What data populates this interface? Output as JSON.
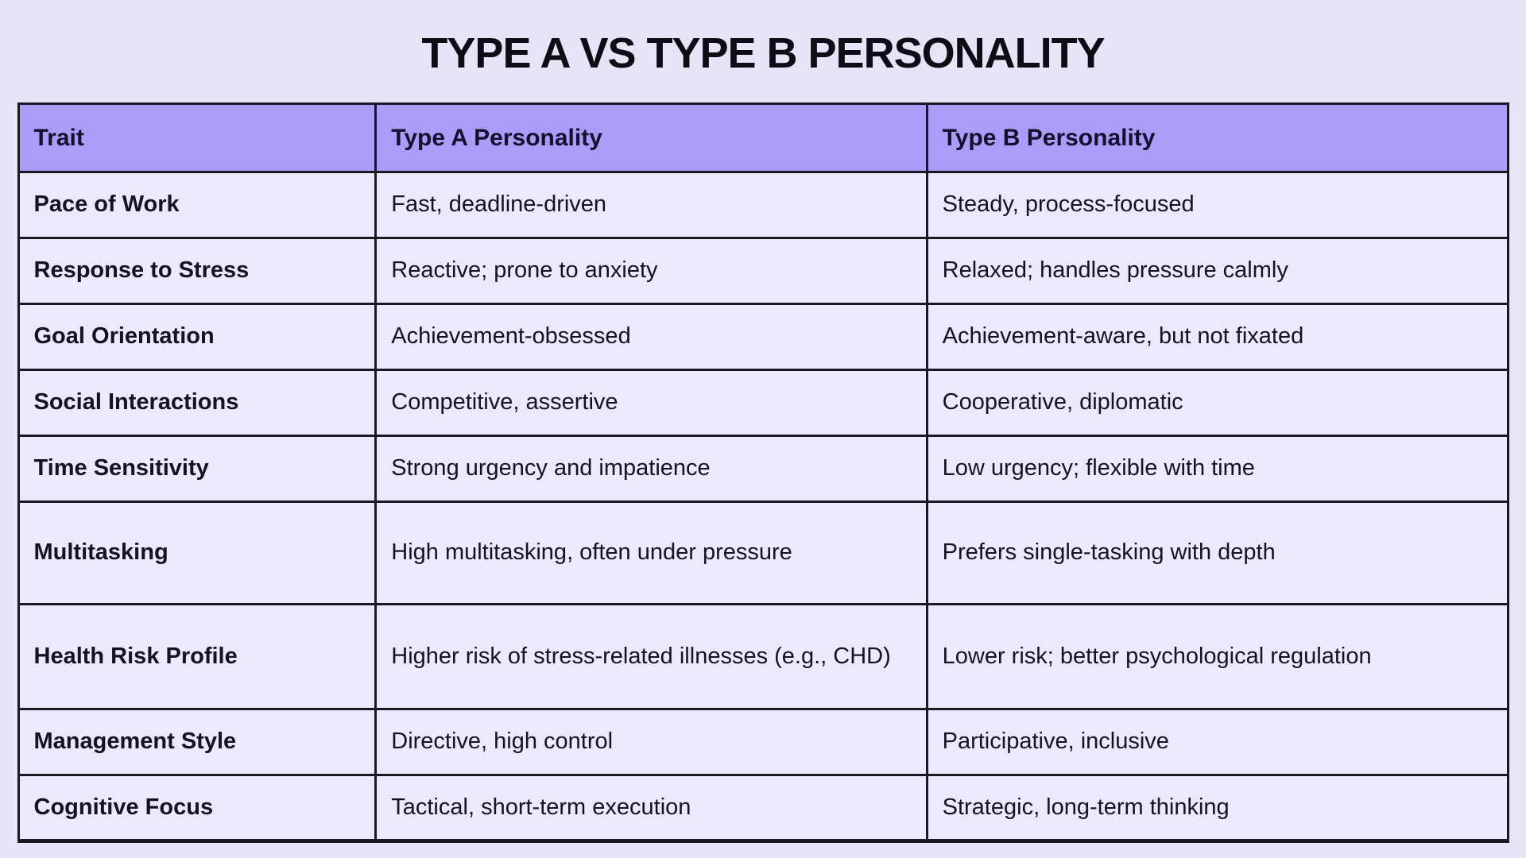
{
  "title": "TYPE A VS TYPE B PERSONALITY",
  "colors": {
    "page_bg": "#E7E4F8",
    "header_bg": "#AB9CFA",
    "cell_bg": "#EBE9FB",
    "border": "#1A1823",
    "text": "#161320"
  },
  "table": {
    "columns": [
      "Trait",
      "Type A Personality",
      "Type B Personality"
    ],
    "rows": [
      {
        "trait": "Pace of Work",
        "type_a": "Fast, deadline-driven",
        "type_b": "Steady, process-focused"
      },
      {
        "trait": "Response to Stress",
        "type_a": "Reactive; prone to anxiety",
        "type_b": "Relaxed; handles pressure calmly"
      },
      {
        "trait": "Goal Orientation",
        "type_a": "Achievement-obsessed",
        "type_b": "Achievement-aware, but not fixated"
      },
      {
        "trait": "Social Interactions",
        "type_a": "Competitive, assertive",
        "type_b": "Cooperative, diplomatic"
      },
      {
        "trait": "Time Sensitivity",
        "type_a": "Strong urgency and impatience",
        "type_b": "Low urgency; flexible with time"
      },
      {
        "trait": "Multitasking",
        "type_a": "High multitasking, often under pressure",
        "type_b": "Prefers single-tasking with depth"
      },
      {
        "trait": "Health Risk Profile",
        "type_a": "Higher risk of stress-related illnesses (e.g., CHD)",
        "type_b": "Lower risk; better psychological regulation"
      },
      {
        "trait": "Management Style",
        "type_a": "Directive, high control",
        "type_b": "Participative, inclusive"
      },
      {
        "trait": "Cognitive Focus",
        "type_a": "Tactical, short-term execution",
        "type_b": "Strategic, long-term thinking"
      }
    ]
  }
}
